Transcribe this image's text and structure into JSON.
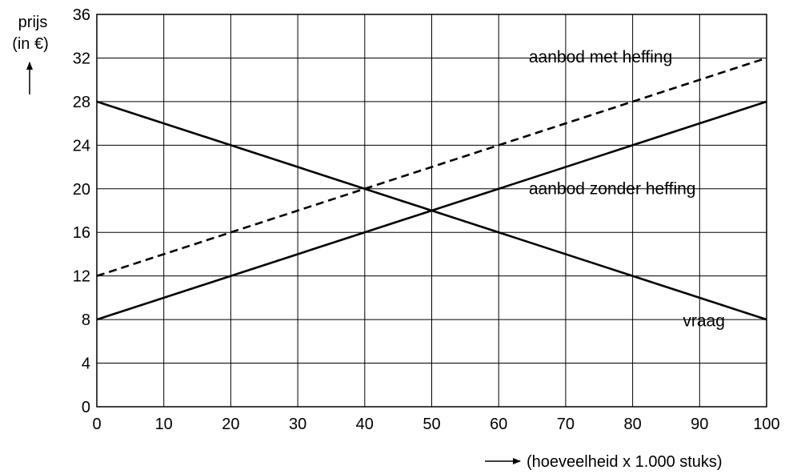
{
  "chart_data": {
    "type": "line",
    "ylabel_line1": "prijs",
    "ylabel_line2": "(in €)",
    "xlabel": "(hoeveelheid x 1.000 stuks)",
    "xlim": [
      0,
      100
    ],
    "ylim": [
      0,
      36
    ],
    "x_ticks": [
      0,
      10,
      20,
      30,
      40,
      50,
      60,
      70,
      80,
      90,
      100
    ],
    "y_ticks": [
      0,
      4,
      8,
      12,
      16,
      20,
      24,
      28,
      32,
      36
    ],
    "grid": true,
    "series": [
      {
        "name": "aanbod met heffing",
        "style": "dashed",
        "color": "#000000",
        "points": [
          {
            "x": 0,
            "y": 12
          },
          {
            "x": 100,
            "y": 32
          }
        ],
        "label_anchor": {
          "x": 64.5,
          "y": 31.6
        }
      },
      {
        "name": "aanbod zonder heffing",
        "style": "solid",
        "color": "#000000",
        "points": [
          {
            "x": 0,
            "y": 8
          },
          {
            "x": 100,
            "y": 28
          }
        ],
        "label_anchor": {
          "x": 64.5,
          "y": 19.5
        }
      },
      {
        "name": "vraag",
        "style": "solid",
        "color": "#000000",
        "points": [
          {
            "x": 0,
            "y": 28
          },
          {
            "x": 100,
            "y": 8
          }
        ],
        "label_anchor": {
          "x": 87.5,
          "y": 7.4
        }
      }
    ]
  }
}
